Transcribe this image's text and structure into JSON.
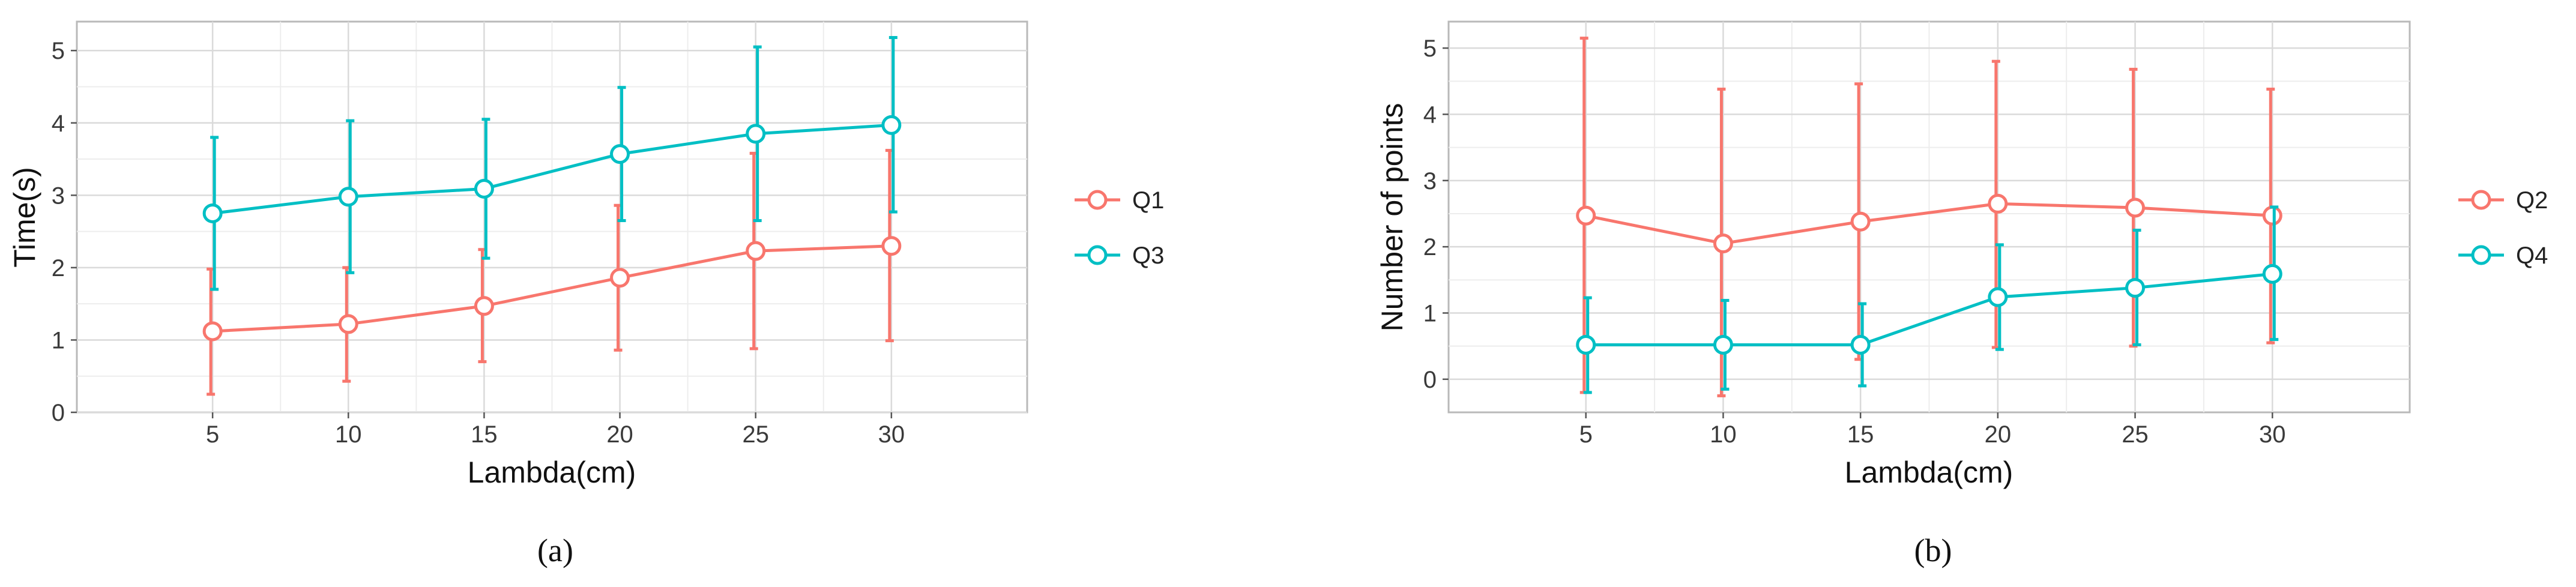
{
  "chart_data": [
    {
      "type": "line",
      "panel_label": "(a)",
      "xlabel": "Lambda(cm)",
      "ylabel": "Time(s)",
      "x": [
        5,
        10,
        15,
        20,
        25,
        30
      ],
      "xticks": [
        "5",
        "10",
        "15",
        "20",
        "25",
        "30"
      ],
      "yticks": [
        "0",
        "1",
        "2",
        "3",
        "4",
        "5"
      ],
      "xlim": [
        0,
        35
      ],
      "ylim": [
        0,
        5.4
      ],
      "grid": true,
      "legend_position": "right",
      "series": [
        {
          "name": "Q1",
          "color": "#F8766D",
          "values": [
            1.12,
            1.22,
            1.47,
            1.86,
            2.23,
            2.3
          ],
          "err_low": [
            0.25,
            0.43,
            0.7,
            0.86,
            0.88,
            0.99
          ],
          "err_high": [
            1.98,
            2.0,
            2.25,
            2.86,
            3.58,
            3.62
          ]
        },
        {
          "name": "Q3",
          "color": "#00BFC4",
          "values": [
            2.75,
            2.98,
            3.09,
            3.57,
            3.85,
            3.97
          ],
          "err_low": [
            1.7,
            1.93,
            2.13,
            2.65,
            2.65,
            2.77
          ],
          "err_high": [
            3.8,
            4.03,
            4.05,
            4.49,
            5.05,
            5.18
          ]
        }
      ]
    },
    {
      "type": "line",
      "panel_label": "(b)",
      "xlabel": "Lambda(cm)",
      "ylabel": "Number of points",
      "x": [
        5,
        10,
        15,
        20,
        25,
        30
      ],
      "xticks": [
        "5",
        "10",
        "15",
        "20",
        "25",
        "30"
      ],
      "yticks": [
        "0",
        "1",
        "2",
        "3",
        "4",
        "5"
      ],
      "xlim": [
        0,
        35
      ],
      "ylim": [
        -0.5,
        5.4
      ],
      "grid": true,
      "legend_position": "right",
      "series": [
        {
          "name": "Q2",
          "color": "#F8766D",
          "values": [
            2.47,
            2.05,
            2.38,
            2.65,
            2.59,
            2.47
          ],
          "err_low": [
            -0.2,
            -0.25,
            0.3,
            0.48,
            0.5,
            0.55
          ],
          "err_high": [
            5.15,
            4.38,
            4.46,
            4.8,
            4.68,
            4.38
          ]
        },
        {
          "name": "Q4",
          "color": "#00BFC4",
          "values": [
            0.52,
            0.52,
            0.52,
            1.24,
            1.38,
            1.59
          ],
          "err_low": [
            -0.2,
            -0.15,
            -0.1,
            0.45,
            0.52,
            0.6
          ],
          "err_high": [
            1.23,
            1.19,
            1.14,
            2.03,
            2.25,
            2.6
          ]
        }
      ]
    }
  ]
}
